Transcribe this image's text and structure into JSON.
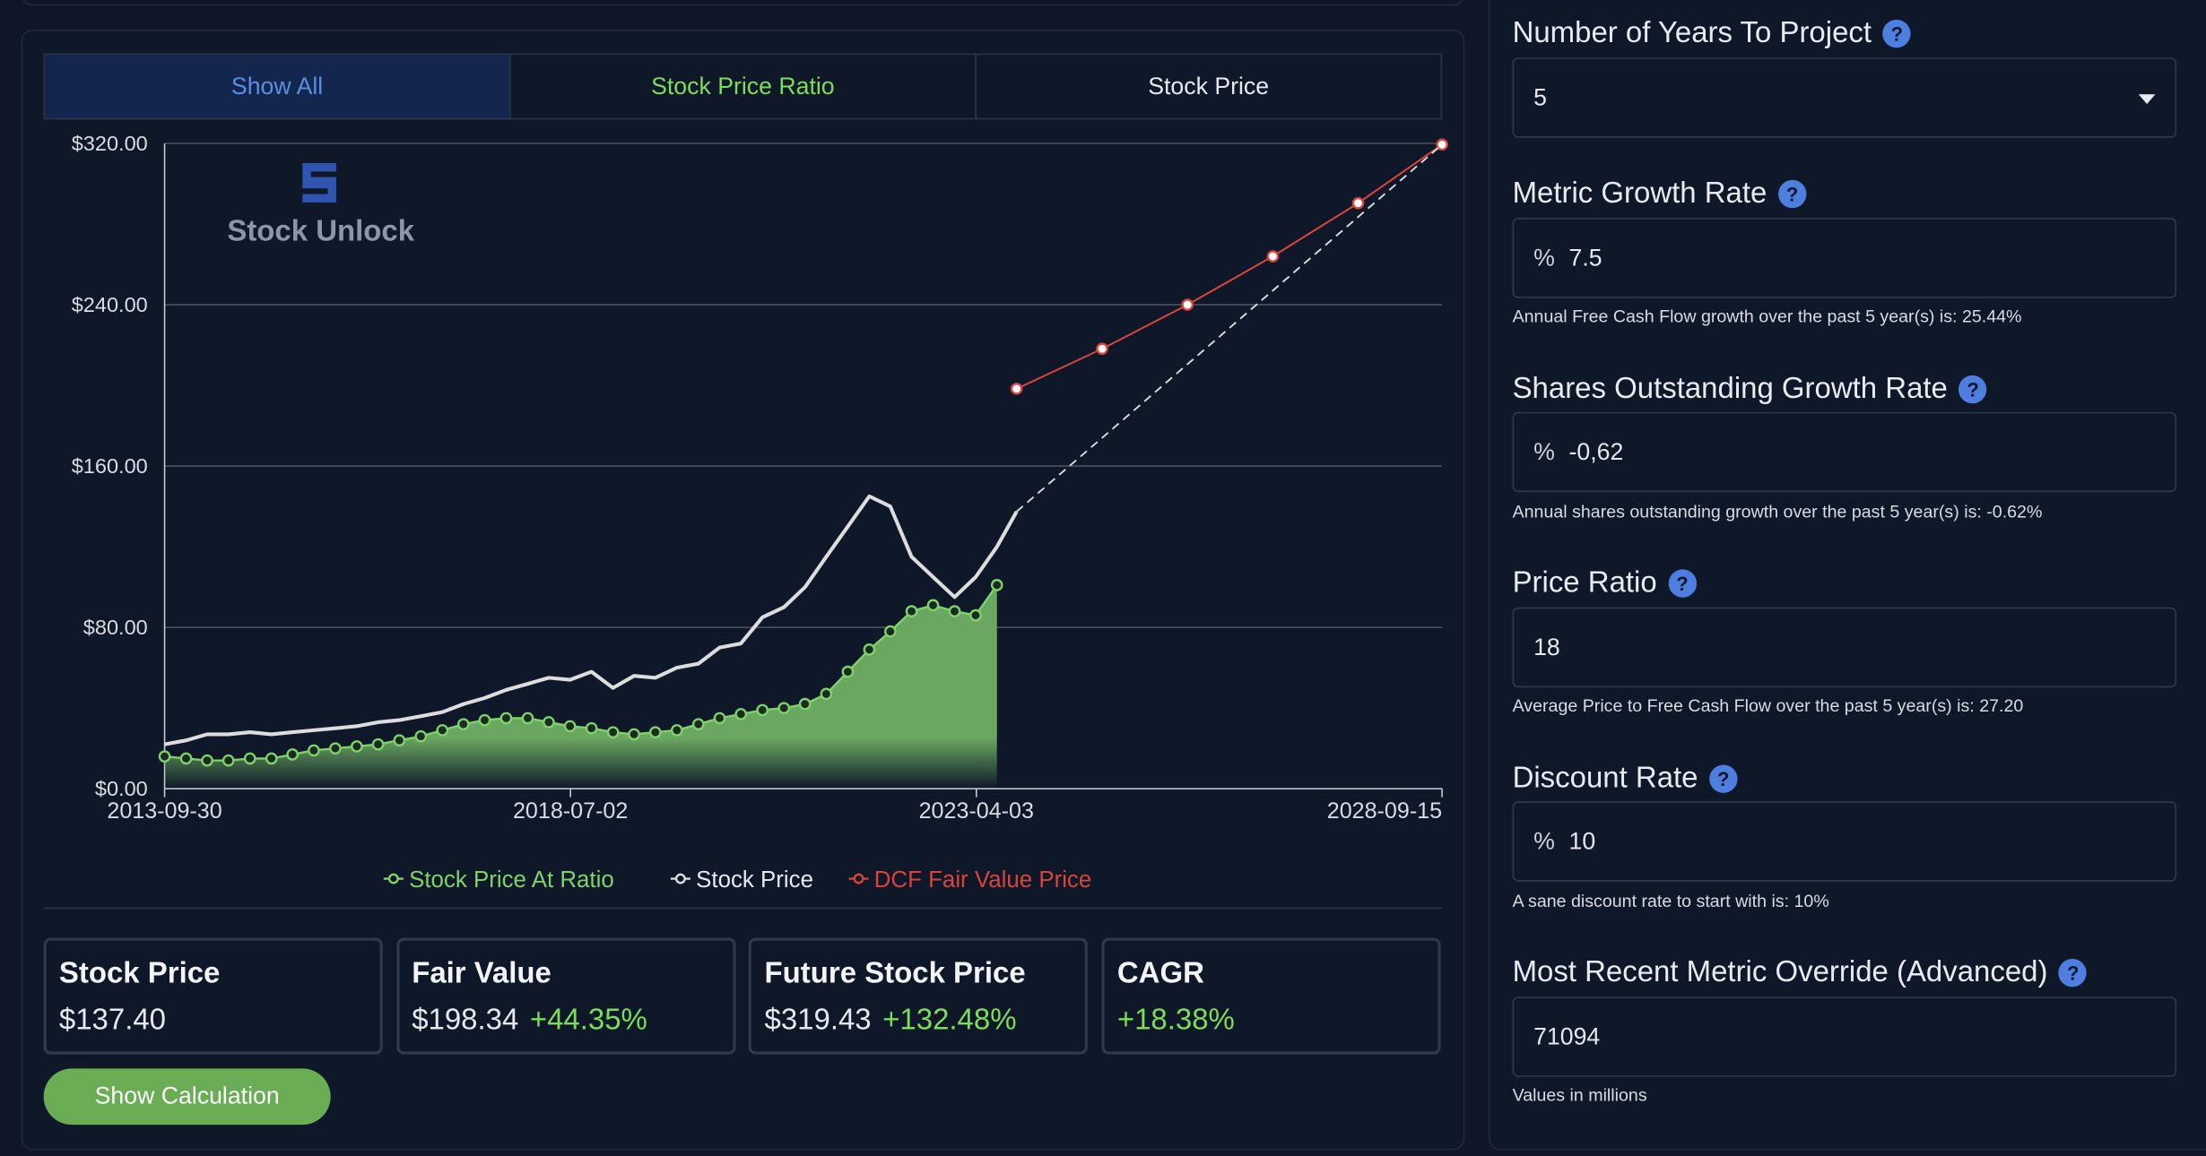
{
  "tabs": [
    "Show All",
    "Stock Price Ratio",
    "Stock Price"
  ],
  "logo": "Stock Unlock",
  "chart_data": {
    "type": "line",
    "x": [
      "2013-09-30",
      "2013-12-31",
      "2014-03-31",
      "2014-06-30",
      "2014-09-30",
      "2014-12-31",
      "2015-03-31",
      "2015-06-30",
      "2015-09-30",
      "2015-12-31",
      "2016-03-31",
      "2016-06-30",
      "2016-09-30",
      "2016-12-31",
      "2017-03-31",
      "2017-06-30",
      "2017-09-30",
      "2017-12-31",
      "2018-03-31",
      "2018-06-30",
      "2018-09-30",
      "2018-12-31",
      "2019-03-31",
      "2019-06-30",
      "2019-09-30",
      "2019-12-31",
      "2020-03-31",
      "2020-06-30",
      "2020-09-30",
      "2020-12-31",
      "2021-03-31",
      "2021-06-30",
      "2021-09-30",
      "2021-12-31",
      "2022-03-31",
      "2022-06-30",
      "2022-09-30",
      "2022-12-31",
      "2023-03-31",
      "2023-06-30",
      "2023-09-22"
    ],
    "series": [
      {
        "name": "Stock Price At Ratio",
        "color": "#7fd36b",
        "values": [
          16,
          15,
          14,
          14,
          15,
          15,
          17,
          19,
          20,
          21,
          22,
          24,
          26,
          29,
          32,
          34,
          35,
          35,
          33,
          31,
          30,
          28,
          27,
          28,
          29,
          32,
          35,
          37,
          39,
          40,
          42,
          47,
          58,
          69,
          78,
          88,
          91,
          88,
          86,
          101,
          null
        ]
      },
      {
        "name": "Stock Price",
        "color": "#dddddd",
        "values": [
          22,
          24,
          27,
          27,
          28,
          27,
          28,
          29,
          30,
          31,
          33,
          34,
          36,
          38,
          42,
          45,
          49,
          52,
          55,
          54,
          58,
          50,
          56,
          55,
          60,
          62,
          70,
          72,
          85,
          90,
          100,
          115,
          130,
          145,
          140,
          115,
          105,
          95,
          105,
          120,
          137.4
        ]
      },
      {
        "name": "DCF Fair Value Price",
        "color": "#d9443c",
        "x": [
          "2023-09-22",
          "2024-09-22",
          "2025-09-22",
          "2026-09-22",
          "2027-09-22",
          "2028-09-15"
        ],
        "values": [
          198.34,
          218.17,
          239.99,
          263.99,
          290.39,
          319.43
        ]
      }
    ],
    "xlim": [
      "2013-09-30",
      "2028-09-15"
    ],
    "xticks": [
      "2013-09-30",
      "2018-07-02",
      "2023-04-03",
      "2028-09-15"
    ],
    "ylim": [
      0,
      320
    ],
    "yticks": [
      {
        "value": 0,
        "label": "$0.00"
      },
      {
        "value": 80,
        "label": "$80.00"
      },
      {
        "value": 160,
        "label": "$160.00"
      },
      {
        "value": 240,
        "label": "$240.00"
      },
      {
        "value": 320,
        "label": "$320.00"
      }
    ],
    "grid": true
  },
  "cards": [
    {
      "label": "Stock Price",
      "value": "$137.40"
    },
    {
      "label": "Fair Value",
      "value": "$198.34",
      "change": "+44.35%"
    },
    {
      "label": "Future Stock Price",
      "value": "$319.43",
      "change": "+132.48%"
    },
    {
      "label": "CAGR",
      "change": "+18.38%"
    }
  ],
  "button": "Show Calculation",
  "help_icon": "?",
  "fields": [
    {
      "label": "Number of Years To Project",
      "value": "5"
    },
    {
      "label": "Metric Growth Rate",
      "prefix": "%",
      "value": "7.5",
      "note": "Annual Free Cash Flow growth over the past 5 year(s) is: 25.44%"
    },
    {
      "label": "Shares Outstanding Growth Rate",
      "prefix": "%",
      "value": "-0,62",
      "note": "Annual shares outstanding growth over the past 5 year(s) is: -0.62%"
    },
    {
      "label": "Price Ratio",
      "value": "18",
      "note": "Average Price to Free Cash Flow over the past 5 year(s) is: 27.20"
    },
    {
      "label": "Discount Rate",
      "prefix": "%",
      "value": "10",
      "note": "A sane discount rate to start with is: 10%"
    },
    {
      "label": "Most Recent Metric Override (Advanced)",
      "value": "71094",
      "note": "Values in millions"
    }
  ]
}
